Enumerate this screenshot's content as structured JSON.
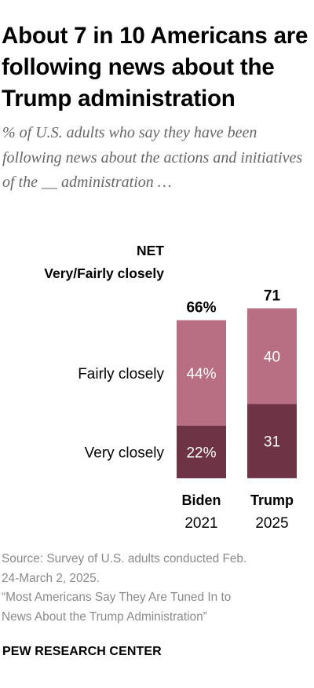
{
  "title": "About 7 in 10 Americans are following news about the Trump administration",
  "subtitle": "% of U.S. adults who say they have been following news about the actions and initiatives of the __ administration …",
  "net_label_line1": "NET",
  "net_label_line2": "Very/Fairly closely",
  "source_line1": "Source: Survey of U.S. adults conducted Feb.",
  "source_line2": "24-March 2, 2025.",
  "report_line1": "“Most Americans Say They Are Tuned In to",
  "report_line2": "News About the Trump Administration”",
  "brand": "PEW RESEARCH CENTER",
  "colors": {
    "very_closely": "#6e3446",
    "fairly_closely": "#b86f84"
  },
  "chart_data": {
    "type": "bar",
    "stacked": true,
    "categories": [
      {
        "name": "Biden",
        "year": "2021"
      },
      {
        "name": "Trump",
        "year": "2025"
      }
    ],
    "series": [
      {
        "name": "Very closely",
        "values": [
          22,
          31
        ],
        "labels": [
          "22%",
          "31"
        ]
      },
      {
        "name": "Fairly closely",
        "values": [
          44,
          40
        ],
        "labels": [
          "44%",
          "40"
        ]
      }
    ],
    "net": {
      "values": [
        66,
        71
      ],
      "labels": [
        "66%",
        "71"
      ]
    },
    "ylim": [
      0,
      100
    ]
  }
}
